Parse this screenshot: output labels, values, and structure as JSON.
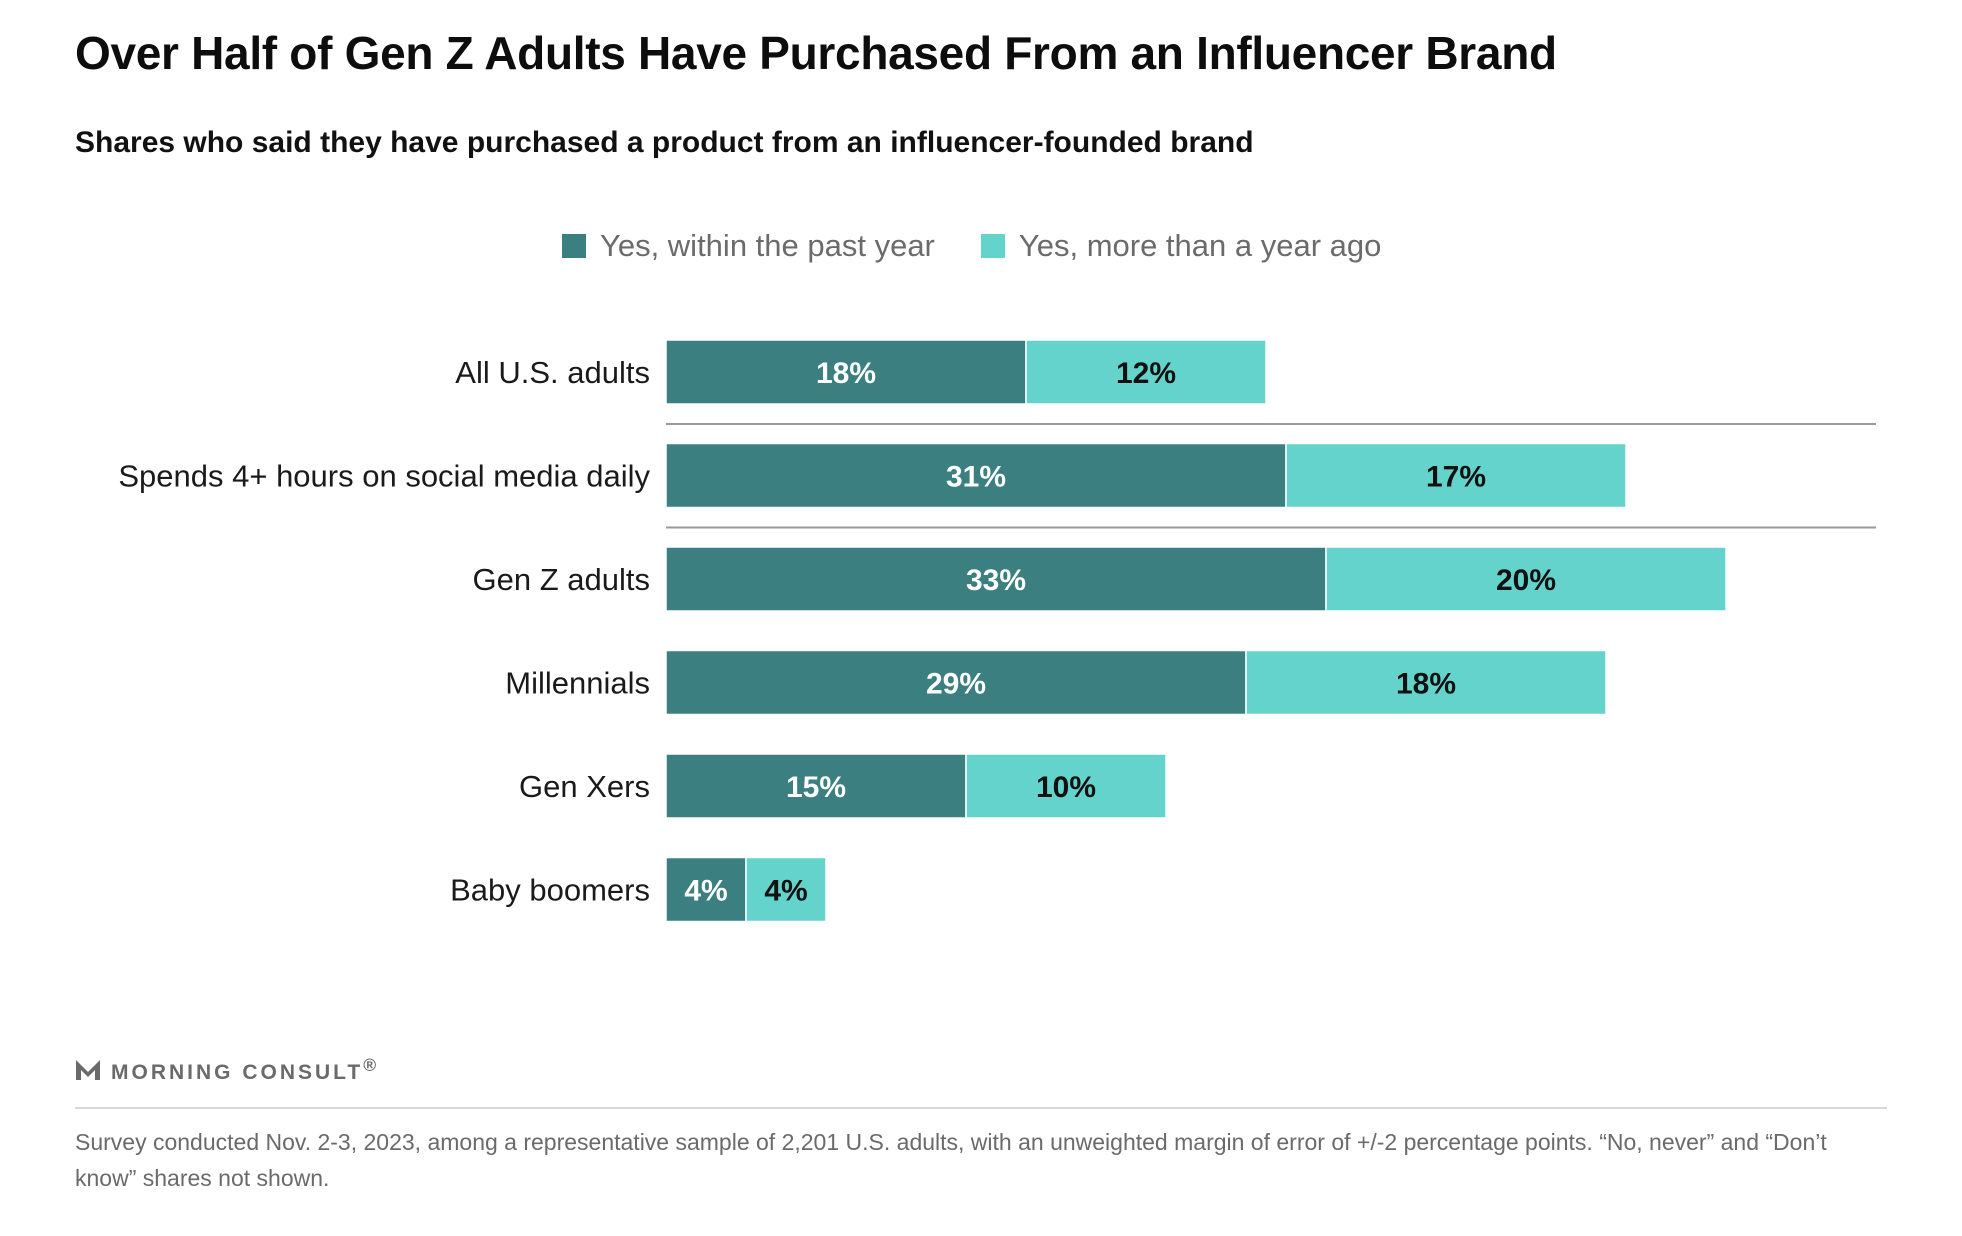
{
  "title": "Over Half of Gen Z Adults Have Purchased From an Influencer Brand",
  "subtitle": "Shares who said they have purchased a product from an influencer-founded brand",
  "legend": [
    {
      "label": "Yes, within the past year",
      "color": "#3b7f80"
    },
    {
      "label": "Yes, more than a year ago",
      "color": "#63d3cb"
    }
  ],
  "chart_data": {
    "type": "bar",
    "orientation": "horizontal",
    "stacked": true,
    "categories": [
      "All U.S. adults",
      "Spends 4+ hours on social media daily",
      "Gen Z adults",
      "Millennials",
      "Gen Xers",
      "Baby boomers"
    ],
    "series": [
      {
        "name": "Yes, within the past year",
        "values": [
          18,
          31,
          33,
          29,
          15,
          4
        ],
        "color": "#3b7f80",
        "label_color": "#ffffff"
      },
      {
        "name": "Yes, more than a year ago",
        "values": [
          12,
          17,
          20,
          18,
          10,
          4
        ],
        "color": "#63d3cb",
        "label_color": "#111111"
      }
    ],
    "value_suffix": "%",
    "separators_after": [
      "All U.S. adults",
      "Spends 4+ hours on social media daily"
    ],
    "xlim": [
      0,
      60
    ]
  },
  "brand": {
    "name": "MORNING CONSULT",
    "mark": "®"
  },
  "note": "Survey conducted Nov. 2-3, 2023, among a representative sample of 2,201 U.S. adults, with an unweighted margin of error of +/-2 percentage points. “No, never” and “Don’t know” shares not shown."
}
